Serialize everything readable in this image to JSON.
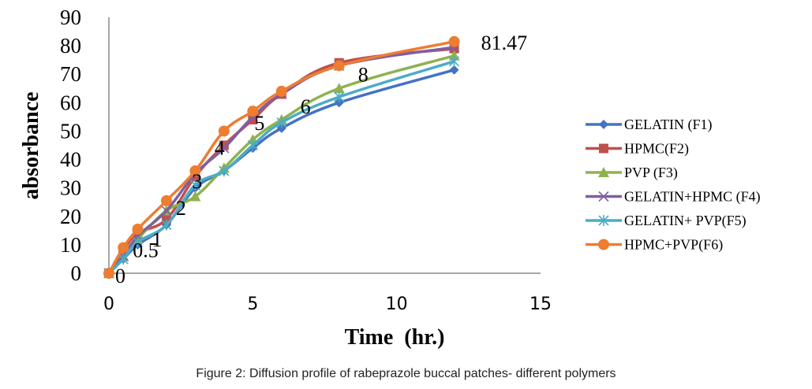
{
  "chart_data": {
    "type": "line",
    "title": "",
    "xlabel": "Time  (hr.)",
    "ylabel": "absorbance",
    "xlim": [
      0,
      15
    ],
    "ylim": [
      0,
      90
    ],
    "x_ticks": [
      0,
      5,
      10,
      15
    ],
    "y_ticks": [
      0,
      10,
      20,
      30,
      40,
      50,
      60,
      70,
      80,
      90
    ],
    "grid": false,
    "legend_position": "right",
    "x": [
      0,
      0.5,
      1,
      2,
      3,
      4,
      5,
      6,
      8,
      12
    ],
    "series": [
      {
        "name": "GELATIN (F1)",
        "color": "#4472c4",
        "marker": "diamond",
        "values": [
          0,
          5,
          10,
          17,
          30,
          36,
          44,
          51,
          60,
          71.5
        ]
      },
      {
        "name": "HPMC(F2)",
        "color": "#c0504d",
        "marker": "square",
        "values": [
          0,
          8,
          14,
          19,
          34,
          45,
          54,
          63,
          74,
          79
        ]
      },
      {
        "name": "PVP (F3)",
        "color": "#8fb24f",
        "marker": "triangle",
        "values": [
          0,
          6,
          12,
          22,
          27,
          37,
          47,
          54,
          65,
          76.5
        ]
      },
      {
        "name": "GELATIN+HPMC (F4)",
        "color": "#7f5fa0",
        "marker": "x",
        "values": [
          0,
          6,
          13,
          22,
          35,
          44,
          55,
          63,
          73,
          79.5
        ]
      },
      {
        "name": "GELATIN+ PVP(F5)",
        "color": "#4bacc6",
        "marker": "star",
        "values": [
          0,
          5,
          11,
          17,
          31,
          36,
          45,
          53,
          62,
          74.5
        ]
      },
      {
        "name": "HPMC+PVP(F6)",
        "color": "#ed7d31",
        "marker": "circle",
        "values": [
          0,
          9,
          15.5,
          25.5,
          36,
          50,
          57,
          64,
          73,
          81.47
        ]
      }
    ],
    "annotations": [
      {
        "text": "0",
        "x": 0,
        "y": 0
      },
      {
        "text": "0.5",
        "x": 0.5,
        "y": 9
      },
      {
        "text": "1",
        "x": 1,
        "y": 15.5
      },
      {
        "text": "2",
        "x": 2,
        "y": 25.5
      },
      {
        "text": "3",
        "x": 3,
        "y": 36
      },
      {
        "text": "4",
        "x": 4,
        "y": 50
      },
      {
        "text": "5",
        "x": 5,
        "y": 57
      },
      {
        "text": "6",
        "x": 6,
        "y": 64
      },
      {
        "text": "8",
        "x": 8,
        "y": 73
      },
      {
        "text": "81.47",
        "x": 12,
        "y": 81.47
      }
    ]
  },
  "caption": "Figure 2: Diffusion profile of rabeprazole buccal patches- different polymers"
}
